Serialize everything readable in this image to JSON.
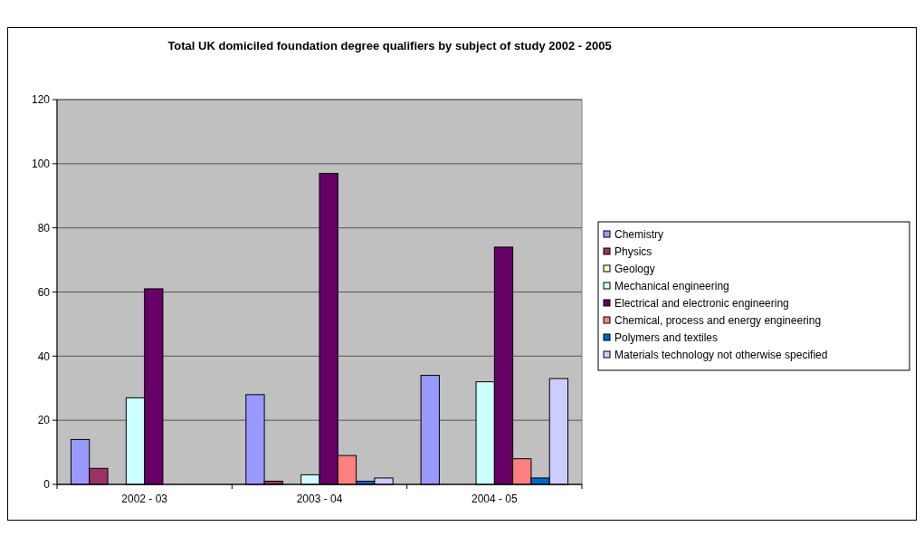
{
  "chart_data": {
    "type": "bar",
    "title": "Total UK domiciled foundation degree qualifiers by subject of study 2002 - 2005",
    "categories": [
      "2002 - 03",
      "2003 - 04",
      "2004 - 05"
    ],
    "series": [
      {
        "name": "Chemistry",
        "color": "#9999ff",
        "values": [
          14,
          28,
          34
        ]
      },
      {
        "name": "Physics",
        "color": "#993366",
        "values": [
          5,
          1,
          0
        ]
      },
      {
        "name": "Geology",
        "color": "#ffffcc",
        "values": [
          0,
          0,
          0
        ]
      },
      {
        "name": "Mechanical engineering",
        "color": "#ccffff",
        "values": [
          27,
          3,
          32
        ]
      },
      {
        "name": "Electrical and electronic engineering",
        "color": "#660066",
        "values": [
          61,
          97,
          74
        ]
      },
      {
        "name": "Chemical, process and energy engineering",
        "color": "#ff8080",
        "values": [
          0,
          9,
          8
        ]
      },
      {
        "name": "Polymers and textiles",
        "color": "#0066cc",
        "values": [
          0,
          1,
          2
        ]
      },
      {
        "name": "Materials technology not otherwise specified",
        "color": "#ccccff",
        "values": [
          0,
          2,
          33
        ]
      }
    ],
    "ylim": [
      0,
      120
    ],
    "yticks": [
      0,
      20,
      40,
      60,
      80,
      100,
      120
    ],
    "grid": "y",
    "legend": "right"
  }
}
